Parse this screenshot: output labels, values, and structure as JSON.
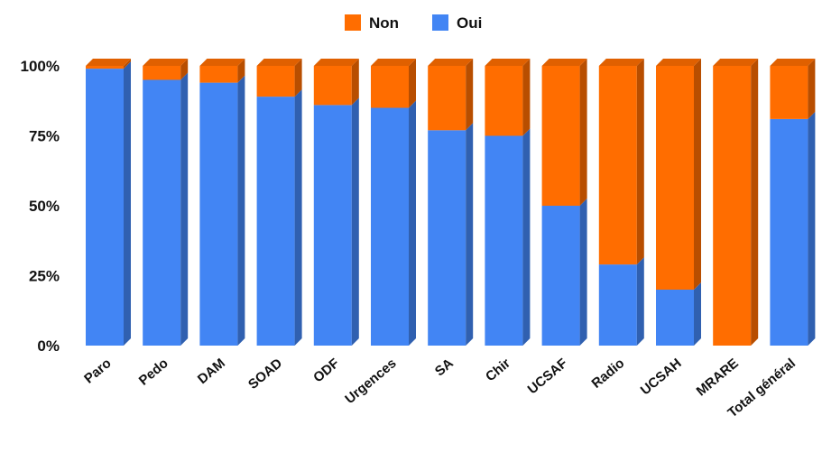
{
  "chart_data": {
    "type": "bar",
    "stacked": true,
    "percent_stacked": true,
    "three_d": true,
    "categories": [
      "Paro",
      "Pedo",
      "DAM",
      "SOAD",
      "ODF",
      "Urgences",
      "SA",
      "Chir",
      "UCSAF",
      "Radio",
      "UCSAH",
      "MRARE",
      "Total général"
    ],
    "series": [
      {
        "name": "Oui",
        "color": "#4285F4",
        "values": [
          99,
          95,
          94,
          89,
          86,
          85,
          77,
          75,
          50,
          29,
          20,
          0,
          81
        ]
      },
      {
        "name": "Non",
        "color": "#FF6D00",
        "values": [
          1,
          5,
          6,
          11,
          14,
          15,
          23,
          25,
          50,
          71,
          80,
          100,
          19
        ]
      }
    ],
    "yticks": [
      "0%",
      "25%",
      "50%",
      "75%",
      "100%"
    ],
    "ylim": [
      0,
      100
    ],
    "legend": {
      "position": "top-center",
      "items": [
        "Non",
        "Oui"
      ]
    },
    "grid": false
  }
}
